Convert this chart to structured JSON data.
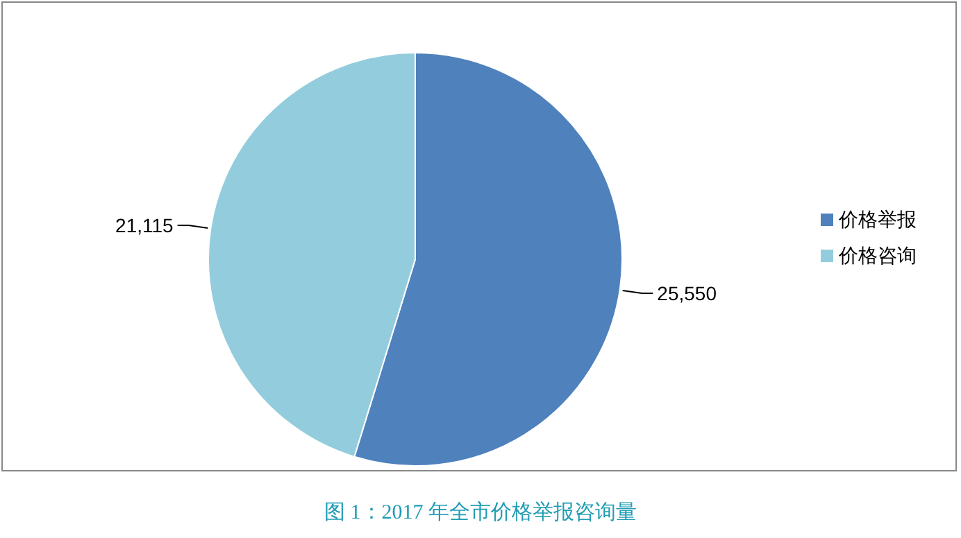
{
  "chart_data": {
    "type": "pie",
    "title": "图 1：2017 年全市价格举报咨询量",
    "categories": [
      "价格举报",
      "价格咨询"
    ],
    "values": [
      25550,
      21115
    ],
    "colors": [
      "#4f81bd",
      "#93cddd"
    ],
    "value_labels": [
      "25,550",
      "21,115"
    ],
    "legend": "right"
  }
}
